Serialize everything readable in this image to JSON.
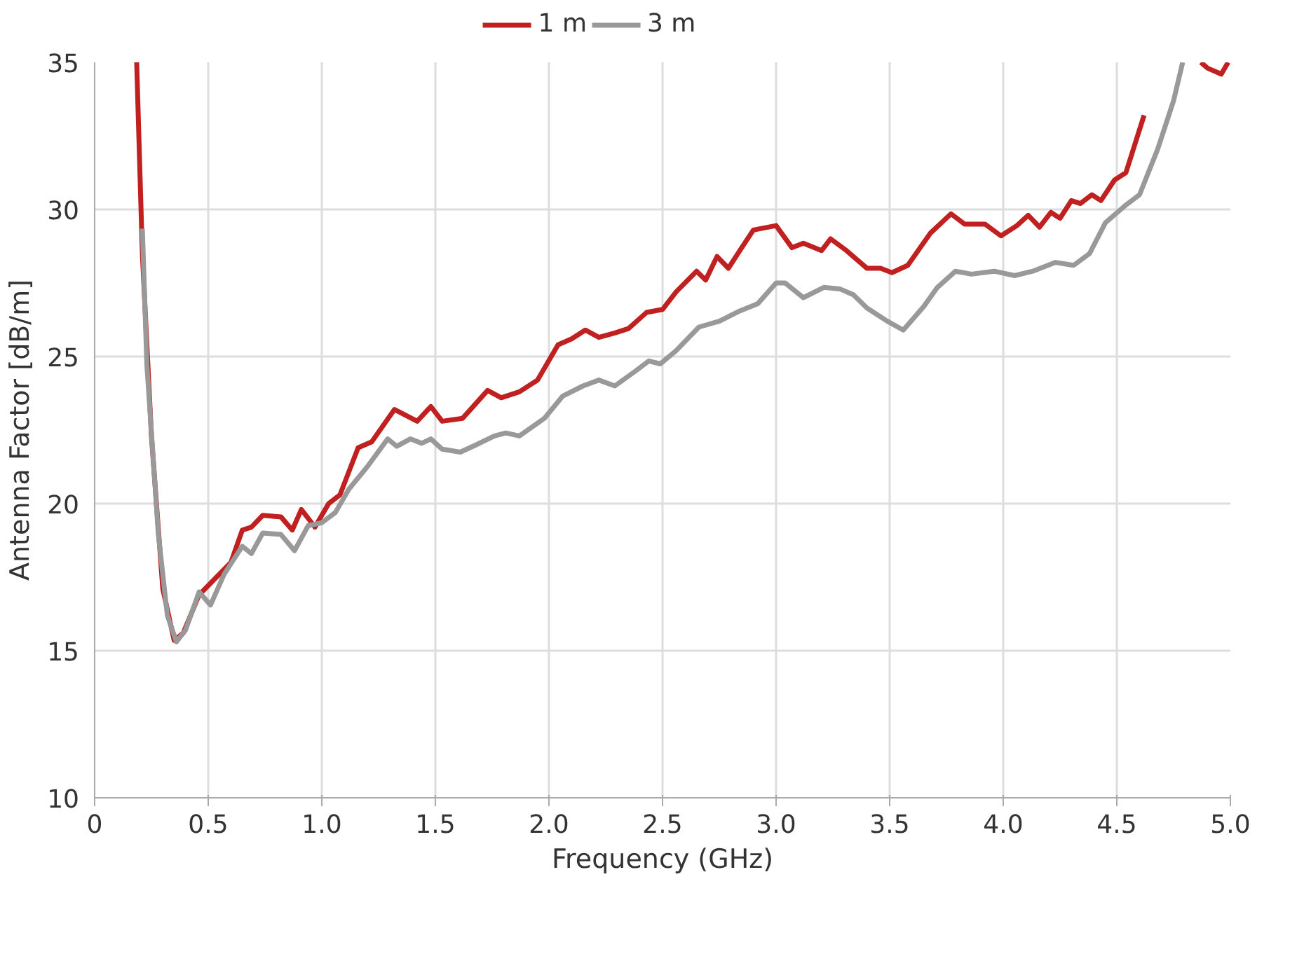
{
  "chart_data": {
    "type": "line",
    "xlabel": "Frequency (GHz)",
    "ylabel": "Antenna Factor [dB/m]",
    "xlim": [
      0,
      5
    ],
    "ylim": [
      10,
      35
    ],
    "xticks": [
      {
        "value": 0,
        "label": "0"
      },
      {
        "value": 0.5,
        "label": "0.5"
      },
      {
        "value": 1,
        "label": "1.0"
      },
      {
        "value": 1.5,
        "label": "1.5"
      },
      {
        "value": 2,
        "label": "2.0"
      },
      {
        "value": 2.5,
        "label": "2.5"
      },
      {
        "value": 3,
        "label": "3.0"
      },
      {
        "value": 3.5,
        "label": "3.5"
      },
      {
        "value": 4,
        "label": "4.0"
      },
      {
        "value": 4.5,
        "label": "4.5"
      },
      {
        "value": 5,
        "label": "5.0"
      }
    ],
    "yticks": [
      10,
      15,
      20,
      25,
      30,
      35
    ],
    "grid": true,
    "legend": "top",
    "line_style": "solid",
    "marker": "none",
    "series": [
      {
        "name": "1 m",
        "color": "#c0201f",
        "x": [
          0.185,
          0.21,
          0.25,
          0.3,
          0.35,
          0.39,
          0.46,
          0.6,
          0.65,
          0.69,
          0.74,
          0.82,
          0.87,
          0.91,
          0.97,
          1.03,
          1.08,
          1.16,
          1.22,
          1.32,
          1.42,
          1.48,
          1.53,
          1.62,
          1.73,
          1.79,
          1.87,
          1.95,
          2.04,
          2.1,
          2.16,
          2.22,
          2.29,
          2.35,
          2.43,
          2.5,
          2.56,
          2.65,
          2.69,
          2.74,
          2.79,
          2.84,
          2.9,
          3.0,
          3.07,
          3.12,
          3.2,
          3.24,
          3.31,
          3.4,
          3.46,
          3.51,
          3.58,
          3.68,
          3.77,
          3.83,
          3.92,
          3.99,
          4.06,
          4.11,
          4.16,
          4.21,
          4.25,
          4.3,
          4.34,
          4.39,
          4.43,
          4.49,
          4.54,
          4.62,
          4.75,
          4.87,
          4.9,
          4.96,
          4.99
        ],
        "values": [
          35,
          28.5,
          22.3,
          17.1,
          15.35,
          15.6,
          16.9,
          18.0,
          19.1,
          19.2,
          19.6,
          19.55,
          19.1,
          19.8,
          19.2,
          20.0,
          20.3,
          21.9,
          22.1,
          23.2,
          22.8,
          23.3,
          22.8,
          22.9,
          23.85,
          23.6,
          23.8,
          24.2,
          25.4,
          25.6,
          25.9,
          25.65,
          25.8,
          25.95,
          26.5,
          26.6,
          27.2,
          27.9,
          27.6,
          28.4,
          28.0,
          28.6,
          29.3,
          29.45,
          28.7,
          28.85,
          28.6,
          29.0,
          28.6,
          28.0,
          28.0,
          27.85,
          28.1,
          29.2,
          29.85,
          29.5,
          29.5,
          29.1,
          29.45,
          29.8,
          29.4,
          29.9,
          29.7,
          30.3,
          30.2,
          30.5,
          30.3,
          31.0,
          31.25,
          33.2,
          null,
          35,
          34.8,
          34.6,
          35
        ]
      },
      {
        "name": "3 m",
        "color": "#999999",
        "x": [
          0.21,
          0.23,
          0.28,
          0.32,
          0.36,
          0.4,
          0.46,
          0.51,
          0.57,
          0.65,
          0.69,
          0.74,
          0.82,
          0.88,
          0.94,
          1.0,
          1.06,
          1.12,
          1.2,
          1.29,
          1.33,
          1.39,
          1.44,
          1.48,
          1.53,
          1.61,
          1.68,
          1.76,
          1.81,
          1.87,
          1.98,
          2.06,
          2.15,
          2.22,
          2.29,
          2.38,
          2.44,
          2.49,
          2.56,
          2.66,
          2.75,
          2.84,
          2.92,
          3.0,
          3.04,
          3.12,
          3.21,
          3.28,
          3.34,
          3.4,
          3.49,
          3.56,
          3.65,
          3.71,
          3.79,
          3.86,
          3.96,
          4.05,
          4.13,
          4.23,
          4.31,
          4.38,
          4.45,
          4.54,
          4.6,
          4.68,
          4.75,
          4.79
        ],
        "values": [
          29.35,
          24.7,
          19.0,
          16.2,
          15.3,
          15.7,
          17.0,
          16.55,
          17.6,
          18.55,
          18.3,
          19.0,
          18.95,
          18.4,
          19.25,
          19.35,
          19.7,
          20.5,
          21.25,
          22.2,
          21.95,
          22.2,
          22.05,
          22.2,
          21.85,
          21.75,
          22.0,
          22.3,
          22.4,
          22.3,
          22.9,
          23.65,
          24.0,
          24.2,
          24.0,
          24.5,
          24.85,
          24.75,
          25.2,
          26.0,
          26.2,
          26.55,
          26.8,
          27.5,
          27.5,
          27.0,
          27.35,
          27.3,
          27.1,
          26.65,
          26.2,
          25.9,
          26.7,
          27.35,
          27.9,
          27.8,
          27.9,
          27.75,
          27.9,
          28.2,
          28.1,
          28.5,
          29.55,
          30.15,
          30.5,
          32.05,
          33.7,
          35
        ]
      }
    ]
  }
}
